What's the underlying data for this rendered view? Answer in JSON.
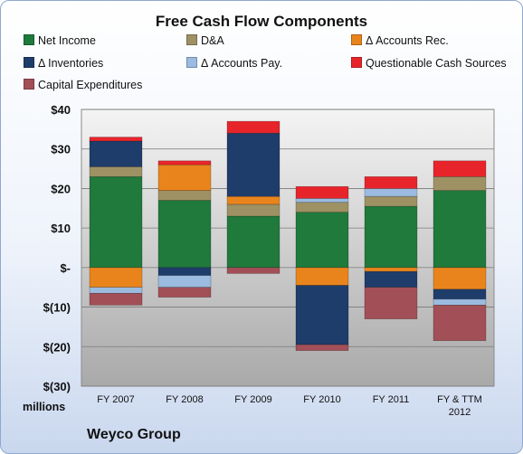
{
  "chart_data": {
    "type": "bar",
    "stacked": true,
    "title": "Free Cash Flow Components",
    "company": "Weyco Group",
    "units_label": "millions",
    "categories": [
      "FY 2007",
      "FY 2008",
      "FY 2009",
      "FY 2010",
      "FY 2011",
      "FY & TTM\n2012"
    ],
    "ylim": [
      -30,
      40
    ],
    "yticks": [
      40,
      30,
      20,
      10,
      0,
      -10,
      -20,
      -30
    ],
    "ytick_labels": [
      "$40",
      "$30",
      "$20",
      "$10",
      "$-",
      "$(10)",
      "$(20)",
      "$(30)"
    ],
    "grid": true,
    "legend_position": "top",
    "series": [
      {
        "name": "Net Income",
        "color": "#1f7a3c",
        "values": [
          23,
          17,
          13,
          14,
          15.5,
          19.5
        ]
      },
      {
        "name": "D&A",
        "color": "#9e9163",
        "values": [
          2.5,
          2.5,
          3,
          2.5,
          2.5,
          3.5
        ]
      },
      {
        "name": "Δ Accounts Rec.",
        "color": "#e9841c",
        "values": [
          -5,
          6.5,
          2,
          -4.5,
          -1,
          -5.5
        ]
      },
      {
        "name": "Δ Inventories",
        "color": "#1f3d6b",
        "values": [
          6.5,
          -2,
          16,
          -15,
          -4,
          -2.5
        ]
      },
      {
        "name": "Δ Accounts Pay.",
        "color": "#9bbbe0",
        "values": [
          -1.5,
          -3,
          0,
          1,
          2,
          -1.5
        ]
      },
      {
        "name": "Questionable Cash Sources",
        "color": "#e8242b",
        "values": [
          1,
          1,
          3,
          3,
          3,
          4
        ]
      },
      {
        "name": "Capital Expenditures",
        "color": "#a34f57",
        "values": [
          -3,
          -2.5,
          -1.5,
          -1.5,
          -8,
          -9
        ]
      }
    ]
  }
}
